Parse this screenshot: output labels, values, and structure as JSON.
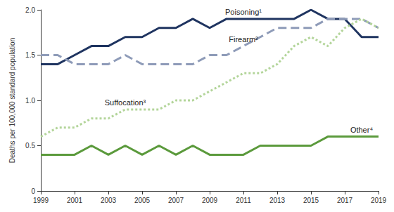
{
  "chart_data": {
    "type": "line",
    "y_label": "Deaths per 100,000 standard population",
    "x": [
      1999,
      2000,
      2001,
      2002,
      2003,
      2004,
      2005,
      2006,
      2007,
      2008,
      2009,
      2010,
      2011,
      2012,
      2013,
      2014,
      2015,
      2016,
      2017,
      2018,
      2019
    ],
    "xlim": [
      1999,
      2019
    ],
    "xticks": [
      1999,
      2001,
      2003,
      2005,
      2007,
      2009,
      2011,
      2013,
      2015,
      2017,
      2019
    ],
    "ylim": [
      0,
      2
    ],
    "yticks": [
      0,
      0.5,
      {
        "value": 1,
        "label": "1.0"
      },
      1.5,
      {
        "value": 2,
        "label": "2.0"
      }
    ],
    "grid": false,
    "series": [
      {
        "name": "Poisoning¹",
        "color": "#1f3460",
        "line_style": "solid",
        "values": [
          1.4,
          1.4,
          1.5,
          1.6,
          1.6,
          1.7,
          1.7,
          1.8,
          1.8,
          1.9,
          1.8,
          1.9,
          1.9,
          1.9,
          1.9,
          1.9,
          2.0,
          1.9,
          1.9,
          1.7,
          1.7
        ]
      },
      {
        "name": "Firearm²",
        "color": "#8e9bb8",
        "line_style": "dashed",
        "values": [
          1.5,
          1.5,
          1.4,
          1.4,
          1.4,
          1.5,
          1.4,
          1.4,
          1.4,
          1.4,
          1.5,
          1.5,
          1.6,
          1.7,
          1.8,
          1.8,
          1.8,
          1.9,
          1.9,
          1.9,
          1.8
        ]
      },
      {
        "name": "Suffocation³",
        "color": "#b3d59a",
        "line_style": "dotted",
        "values": [
          0.6,
          0.7,
          0.7,
          0.8,
          0.8,
          0.9,
          0.9,
          0.9,
          1.0,
          1.0,
          1.1,
          1.2,
          1.3,
          1.3,
          1.4,
          1.6,
          1.7,
          1.6,
          1.8,
          1.9,
          1.8
        ]
      },
      {
        "name": "Other⁴",
        "color": "#5b9a3c",
        "line_style": "solid",
        "values": [
          0.4,
          0.4,
          0.4,
          0.5,
          0.4,
          0.5,
          0.4,
          0.5,
          0.4,
          0.5,
          0.4,
          0.4,
          0.4,
          0.5,
          0.5,
          0.5,
          0.5,
          0.6,
          0.6,
          0.6,
          0.6
        ]
      }
    ]
  }
}
